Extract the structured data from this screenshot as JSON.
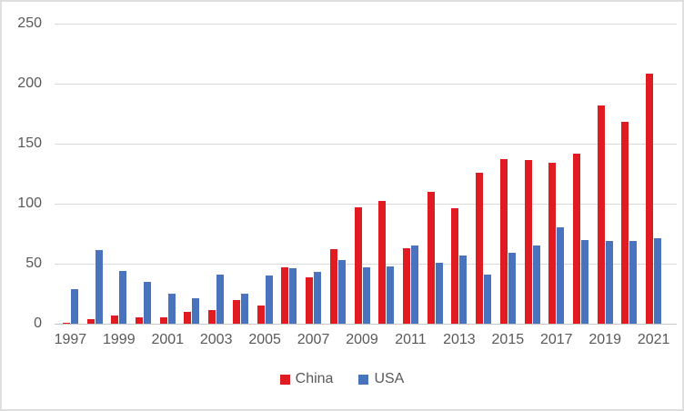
{
  "chart_data": {
    "type": "bar",
    "title": "",
    "xlabel": "",
    "ylabel": "",
    "categories": [
      "1997",
      "1998",
      "1999",
      "2000",
      "2001",
      "2002",
      "2003",
      "2004",
      "2005",
      "2006",
      "2007",
      "2008",
      "2009",
      "2010",
      "2011",
      "2012",
      "2013",
      "2014",
      "2015",
      "2016",
      "2017",
      "2018",
      "2019",
      "2020",
      "2021"
    ],
    "series": [
      {
        "name": "China",
        "color": "#e11b22",
        "values": [
          1,
          4,
          7,
          5,
          5,
          10,
          11,
          20,
          15,
          47,
          39,
          62,
          97,
          102,
          63,
          110,
          96,
          126,
          137,
          136,
          134,
          142,
          182,
          168,
          208
        ]
      },
      {
        "name": "USA",
        "color": "#4a73be",
        "values": [
          29,
          61,
          44,
          35,
          25,
          21,
          41,
          25,
          40,
          46,
          43,
          53,
          47,
          48,
          65,
          51,
          57,
          41,
          59,
          65,
          80,
          70,
          69,
          69,
          71
        ]
      }
    ],
    "ylim": [
      0,
      250
    ],
    "yticks": [
      0,
      50,
      100,
      150,
      200,
      250
    ],
    "x_label_every": 2,
    "grid": "horizontal",
    "legend_position": "bottom"
  },
  "colors": {
    "background": "#ffffff",
    "border": "#dedede",
    "gridline": "#d9d9d9",
    "axis_text": "#595959"
  }
}
